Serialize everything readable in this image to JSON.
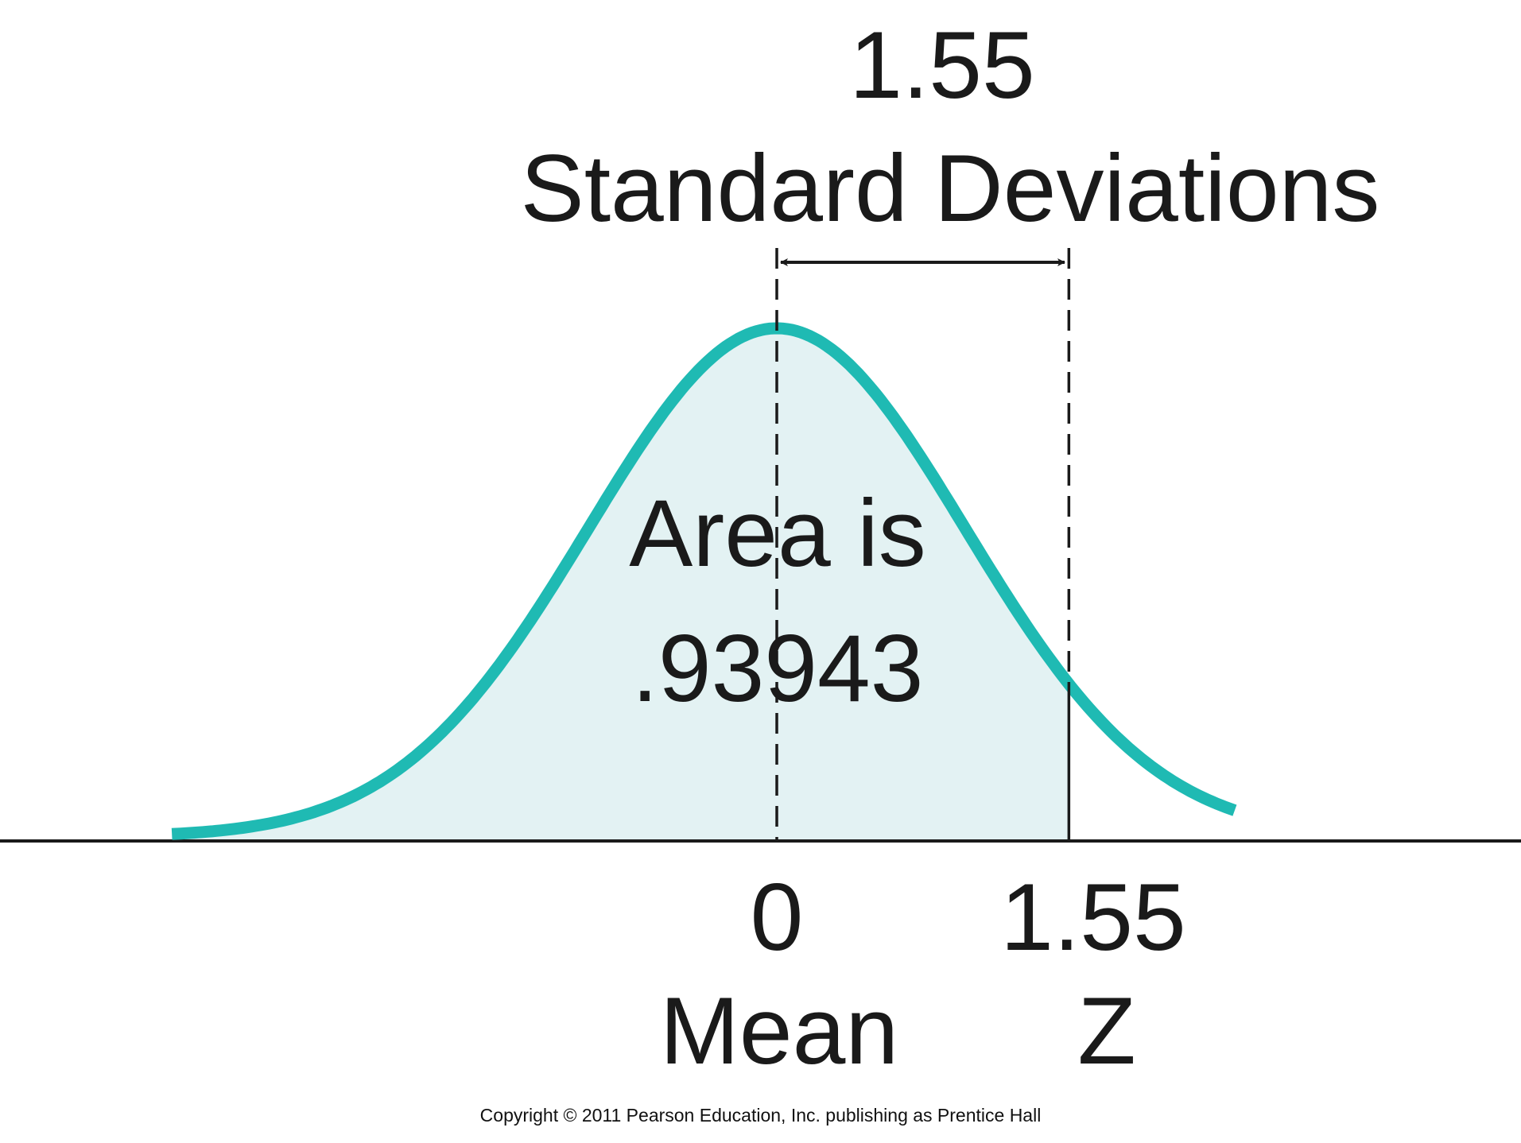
{
  "diagram": {
    "distance_value": "1.55",
    "distance_caption": "Standard Deviations",
    "area_line1": "Area is",
    "area_line2": ".93943",
    "mean_tick": "0",
    "z_tick": "1.55",
    "mean_label": "Mean",
    "z_label": "Z",
    "mean_value": 0,
    "z_value": 1.55,
    "area_value": 0.93943,
    "curve_color": "#1fbab3",
    "fill_color": "#e3f2f3"
  },
  "copyright": "Copyright © 2011 Pearson Education, Inc. publishing as Prentice Hall"
}
